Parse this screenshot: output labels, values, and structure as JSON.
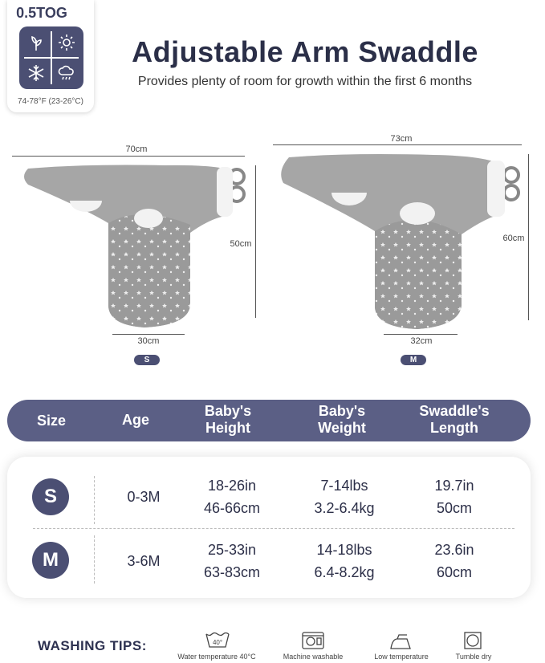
{
  "tog": {
    "rating": "0.5TOG",
    "temperature": "74-78°F (23-26°C)",
    "icons": [
      "leaf-icon",
      "sun-icon",
      "snowflake-icon",
      "rain-cloud-icon"
    ]
  },
  "header": {
    "title": "Adjustable Arm Swaddle",
    "subtitle": "Provides plenty of room for growth within the first 6 months"
  },
  "diagram": {
    "small": {
      "size": "S",
      "width": "70cm",
      "height": "50cm",
      "bottom_width": "30cm"
    },
    "medium": {
      "size": "M",
      "width": "73cm",
      "height": "60cm",
      "bottom_width": "32cm"
    }
  },
  "table": {
    "headers": {
      "size": "Size",
      "age": "Age",
      "height_l1": "Baby's",
      "height_l2": "Height",
      "weight_l1": "Baby's",
      "weight_l2": "Weight",
      "length_l1": "Swaddle's",
      "length_l2": "Length"
    },
    "rows": [
      {
        "size": "S",
        "age": "0-3M",
        "height_in": "18-26in",
        "height_cm": "46-66cm",
        "weight_lbs": "7-14lbs",
        "weight_kg": "3.2-6.4kg",
        "length_in": "19.7in",
        "length_cm": "50cm"
      },
      {
        "size": "M",
        "age": "3-6M",
        "height_in": "25-33in",
        "height_cm": "63-83cm",
        "weight_lbs": "14-18lbs",
        "weight_kg": "6.4-8.2kg",
        "length_in": "23.6in",
        "length_cm": "60cm"
      }
    ]
  },
  "washing": {
    "title": "WASHING TIPS:",
    "water_temp_badge": "40°",
    "tips": [
      {
        "icon": "wash-tub-icon",
        "label": "Water temperature 40°C"
      },
      {
        "icon": "washing-machine-icon",
        "label": "Machine washable"
      },
      {
        "icon": "iron-icon",
        "label": "Low temperature"
      },
      {
        "icon": "tumble-dry-icon",
        "label": "Tumble dry"
      }
    ]
  },
  "colors": {
    "accent": "#5b5f85",
    "circle": "#4b4f73",
    "fabric": "#a3a3a3",
    "fabric_pattern": "#8e8e8e"
  }
}
